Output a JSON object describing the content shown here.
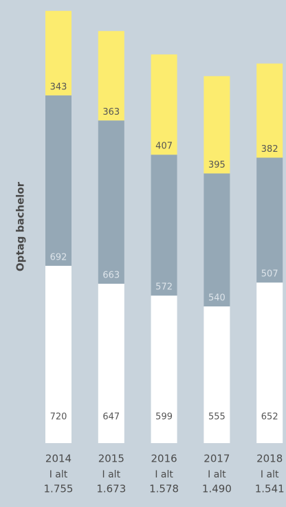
{
  "chart_data": {
    "type": "stacked_bar",
    "y_label": "Optag bachelor",
    "categories": [
      "2014",
      "2015",
      "2016",
      "2017",
      "2018"
    ],
    "series": [
      {
        "color": "#ffffff",
        "label_color": "#555555",
        "values": [
          720,
          647,
          599,
          555,
          652
        ]
      },
      {
        "color": "#95a8b6",
        "label_color": "#dde4ea",
        "values": [
          692,
          663,
          572,
          540,
          507
        ]
      },
      {
        "color": "#fcec6f",
        "label_color": "#555555",
        "values": [
          343,
          363,
          407,
          395,
          382
        ]
      }
    ],
    "total_caption": "I alt",
    "totals": {
      "values": [
        1755,
        1673,
        1578,
        1490,
        1541
      ],
      "value_labels": [
        "1.755",
        "1.673",
        "1.578",
        "1.490",
        "1.541"
      ]
    },
    "ylim": [
      0,
      1760
    ]
  }
}
